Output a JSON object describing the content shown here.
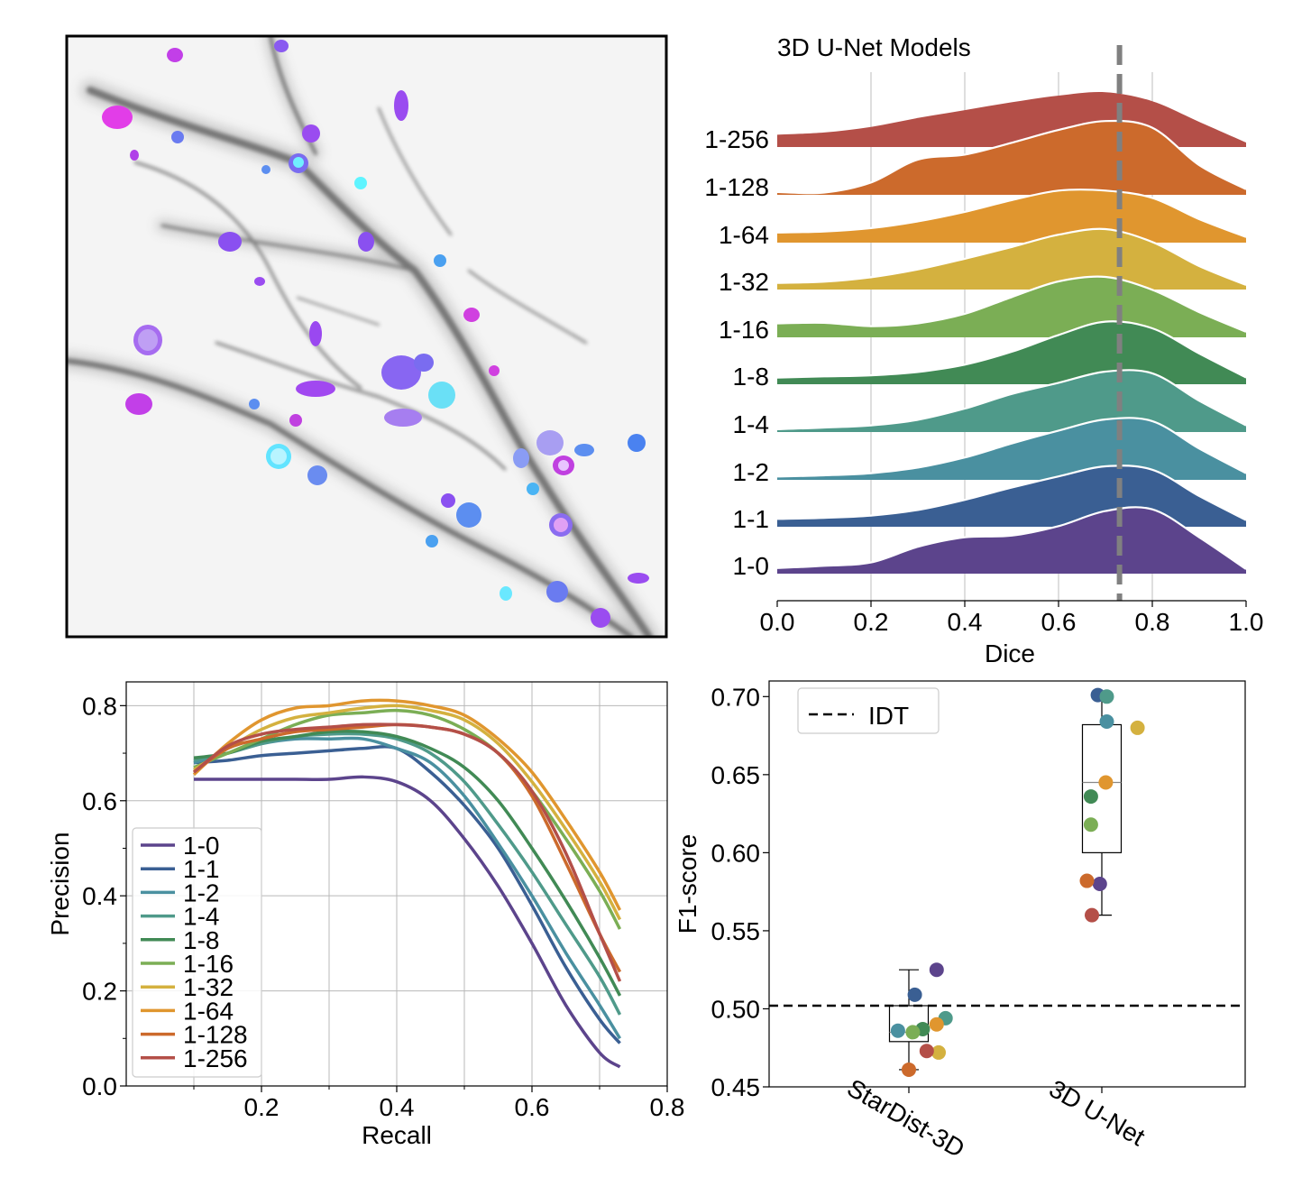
{
  "colors": {
    "1-0": "#5c448c",
    "1-1": "#3a5f93",
    "1-2": "#4a90a0",
    "1-4": "#4f9a8a",
    "1-8": "#418a55",
    "1-16": "#7bae55",
    "1-32": "#d4b13f",
    "1-64": "#e0962f",
    "1-128": "#cc6a2c",
    "1-256": "#b44f48",
    "median": "#808080",
    "idt": "#000000"
  },
  "chart_data": [
    {
      "panel": "micrograph",
      "type": "image",
      "description_visible": "fluorescence micrograph with colored segmented cells"
    },
    {
      "panel": "ridgeline",
      "type": "area",
      "title": "3D U-Net Models",
      "xlabel": "Dice",
      "xlim": [
        0.0,
        1.0
      ],
      "xticks": [
        "0.0",
        "0.2",
        "0.4",
        "0.6",
        "0.8",
        "1.0"
      ],
      "median_dice": 0.73,
      "grid": "vertical",
      "series": [
        {
          "name": "1-256",
          "x": [
            0,
            0.1,
            0.2,
            0.3,
            0.4,
            0.5,
            0.6,
            0.7,
            0.8,
            0.9,
            1.0
          ],
          "density": [
            0.22,
            0.26,
            0.36,
            0.52,
            0.66,
            0.8,
            0.92,
            0.98,
            0.82,
            0.45,
            0.08
          ]
        },
        {
          "name": "1-128",
          "x": [
            0,
            0.1,
            0.2,
            0.3,
            0.4,
            0.5,
            0.6,
            0.7,
            0.8,
            0.9,
            1.0
          ],
          "density": [
            0.05,
            0.04,
            0.22,
            0.63,
            0.72,
            0.93,
            1.16,
            1.32,
            1.2,
            0.53,
            0.1
          ]
        },
        {
          "name": "1-64",
          "x": [
            0,
            0.1,
            0.2,
            0.3,
            0.4,
            0.5,
            0.6,
            0.7,
            0.8,
            0.9,
            1.0
          ],
          "density": [
            0.18,
            0.2,
            0.26,
            0.38,
            0.55,
            0.76,
            0.93,
            0.93,
            0.8,
            0.42,
            0.1
          ]
        },
        {
          "name": "1-32",
          "x": [
            0,
            0.1,
            0.2,
            0.3,
            0.4,
            0.5,
            0.6,
            0.7,
            0.8,
            0.9,
            1.0
          ],
          "density": [
            0.12,
            0.14,
            0.22,
            0.36,
            0.55,
            0.76,
            0.98,
            1.08,
            0.85,
            0.42,
            0.08
          ]
        },
        {
          "name": "1-16",
          "x": [
            0,
            0.1,
            0.2,
            0.3,
            0.4,
            0.5,
            0.6,
            0.7,
            0.8,
            0.9,
            1.0
          ],
          "density": [
            0.25,
            0.26,
            0.2,
            0.25,
            0.42,
            0.72,
            1.0,
            1.08,
            0.85,
            0.45,
            0.1
          ]
        },
        {
          "name": "1-8",
          "x": [
            0,
            0.1,
            0.2,
            0.3,
            0.4,
            0.5,
            0.6,
            0.7,
            0.8,
            0.9,
            1.0
          ],
          "density": [
            0.12,
            0.14,
            0.16,
            0.22,
            0.35,
            0.58,
            0.88,
            1.12,
            1.0,
            0.55,
            0.12
          ]
        },
        {
          "name": "1-4",
          "x": [
            0,
            0.1,
            0.2,
            0.3,
            0.4,
            0.5,
            0.6,
            0.7,
            0.8,
            0.9,
            1.0
          ],
          "density": [
            0.05,
            0.08,
            0.12,
            0.22,
            0.42,
            0.68,
            0.88,
            1.08,
            1.05,
            0.56,
            0.12
          ]
        },
        {
          "name": "1-2",
          "x": [
            0,
            0.1,
            0.2,
            0.3,
            0.4,
            0.5,
            0.6,
            0.7,
            0.8,
            0.9,
            1.0
          ],
          "density": [
            0.06,
            0.08,
            0.12,
            0.22,
            0.4,
            0.65,
            0.88,
            1.08,
            1.05,
            0.56,
            0.12
          ]
        },
        {
          "name": "1-1",
          "x": [
            0,
            0.1,
            0.2,
            0.3,
            0.4,
            0.5,
            0.6,
            0.7,
            0.8,
            0.9,
            1.0
          ],
          "density": [
            0.14,
            0.16,
            0.2,
            0.3,
            0.48,
            0.7,
            0.9,
            1.08,
            1.02,
            0.55,
            0.12
          ]
        },
        {
          "name": "1-0",
          "x": [
            0,
            0.1,
            0.2,
            0.3,
            0.4,
            0.5,
            0.6,
            0.7,
            0.8,
            0.9,
            1.0
          ],
          "density": [
            0.1,
            0.14,
            0.2,
            0.48,
            0.65,
            0.68,
            0.85,
            1.12,
            1.15,
            0.65,
            0.08
          ]
        }
      ]
    },
    {
      "panel": "precision_recall",
      "type": "line",
      "xlabel": "Recall",
      "ylabel": "Precision",
      "xlim": [
        0.0,
        0.8
      ],
      "ylim": [
        0.0,
        0.85
      ],
      "xticks": [
        "0.2",
        "0.4",
        "0.6",
        "0.8"
      ],
      "yticks": [
        "0.0",
        "0.2",
        "0.4",
        "0.6",
        "0.8"
      ],
      "grid": true,
      "legend": "lower-left",
      "x": [
        0.1,
        0.15,
        0.2,
        0.25,
        0.3,
        0.35,
        0.4,
        0.45,
        0.5,
        0.55,
        0.6,
        0.65,
        0.7,
        0.73
      ],
      "series": [
        {
          "name": "1-0",
          "values": [
            0.645,
            0.645,
            0.645,
            0.645,
            0.645,
            0.65,
            0.64,
            0.6,
            0.52,
            0.42,
            0.3,
            0.17,
            0.07,
            0.04
          ]
        },
        {
          "name": "1-1",
          "values": [
            0.68,
            0.685,
            0.695,
            0.7,
            0.705,
            0.71,
            0.71,
            0.66,
            0.59,
            0.5,
            0.38,
            0.25,
            0.14,
            0.09
          ]
        },
        {
          "name": "1-2",
          "values": [
            0.68,
            0.7,
            0.72,
            0.73,
            0.73,
            0.73,
            0.71,
            0.68,
            0.61,
            0.51,
            0.4,
            0.28,
            0.17,
            0.1
          ]
        },
        {
          "name": "1-4",
          "values": [
            0.685,
            0.7,
            0.72,
            0.735,
            0.74,
            0.74,
            0.73,
            0.7,
            0.64,
            0.55,
            0.45,
            0.34,
            0.23,
            0.15
          ]
        },
        {
          "name": "1-8",
          "values": [
            0.69,
            0.7,
            0.725,
            0.735,
            0.745,
            0.745,
            0.735,
            0.71,
            0.67,
            0.6,
            0.5,
            0.39,
            0.27,
            0.19
          ]
        },
        {
          "name": "1-16",
          "values": [
            0.67,
            0.7,
            0.73,
            0.76,
            0.78,
            0.785,
            0.79,
            0.78,
            0.75,
            0.7,
            0.62,
            0.52,
            0.41,
            0.33
          ]
        },
        {
          "name": "1-32",
          "values": [
            0.665,
            0.71,
            0.75,
            0.775,
            0.785,
            0.795,
            0.8,
            0.79,
            0.77,
            0.72,
            0.64,
            0.54,
            0.43,
            0.35
          ]
        },
        {
          "name": "1-64",
          "values": [
            0.655,
            0.72,
            0.77,
            0.795,
            0.8,
            0.81,
            0.81,
            0.8,
            0.78,
            0.73,
            0.66,
            0.56,
            0.45,
            0.37
          ]
        },
        {
          "name": "1-128",
          "values": [
            0.66,
            0.71,
            0.73,
            0.745,
            0.75,
            0.755,
            0.76,
            0.755,
            0.74,
            0.7,
            0.61,
            0.47,
            0.32,
            0.24
          ]
        },
        {
          "name": "1-256",
          "values": [
            0.66,
            0.715,
            0.74,
            0.75,
            0.755,
            0.76,
            0.76,
            0.755,
            0.74,
            0.7,
            0.62,
            0.49,
            0.32,
            0.22
          ]
        }
      ]
    },
    {
      "panel": "f1_box",
      "type": "scatter",
      "ylabel": "F1-score",
      "ylim": [
        0.45,
        0.71
      ],
      "yticks": [
        "0.45",
        "0.50",
        "0.55",
        "0.60",
        "0.65",
        "0.70"
      ],
      "categories": [
        "StarDist-3D",
        "3D U-Net"
      ],
      "idt_line": 0.502,
      "legend": "upper-left",
      "legend_label": "IDT",
      "boxes": [
        {
          "q1": 0.479,
          "median": 0.485,
          "q3": 0.502,
          "whisker_low": 0.461,
          "whisker_high": 0.525
        },
        {
          "q1": 0.6,
          "median": 0.645,
          "q3": 0.682,
          "whisker_low": 0.56,
          "whisker_high": 0.701
        }
      ],
      "points": [
        {
          "group": "StarDist-3D",
          "series": "1-0",
          "offset": 0.28,
          "value": 0.525
        },
        {
          "group": "StarDist-3D",
          "series": "1-1",
          "offset": 0.06,
          "value": 0.509
        },
        {
          "group": "StarDist-3D",
          "series": "1-2",
          "offset": -0.11,
          "value": 0.486
        },
        {
          "group": "StarDist-3D",
          "series": "1-4",
          "offset": 0.37,
          "value": 0.494
        },
        {
          "group": "StarDist-3D",
          "series": "1-8",
          "offset": 0.14,
          "value": 0.487
        },
        {
          "group": "StarDist-3D",
          "series": "1-16",
          "offset": 0.04,
          "value": 0.485
        },
        {
          "group": "StarDist-3D",
          "series": "1-32",
          "offset": 0.3,
          "value": 0.472
        },
        {
          "group": "StarDist-3D",
          "series": "1-64",
          "offset": 0.28,
          "value": 0.49
        },
        {
          "group": "StarDist-3D",
          "series": "1-128",
          "offset": 0.0,
          "value": 0.461
        },
        {
          "group": "StarDist-3D",
          "series": "1-256",
          "offset": 0.18,
          "value": 0.473
        },
        {
          "group": "3D U-Net",
          "series": "1-0",
          "offset": -0.02,
          "value": 0.58
        },
        {
          "group": "3D U-Net",
          "series": "1-1",
          "offset": -0.04,
          "value": 0.701
        },
        {
          "group": "3D U-Net",
          "series": "1-2",
          "offset": 0.05,
          "value": 0.684
        },
        {
          "group": "3D U-Net",
          "series": "1-4",
          "offset": 0.05,
          "value": 0.7
        },
        {
          "group": "3D U-Net",
          "series": "1-8",
          "offset": -0.11,
          "value": 0.636
        },
        {
          "group": "3D U-Net",
          "series": "1-16",
          "offset": -0.11,
          "value": 0.618
        },
        {
          "group": "3D U-Net",
          "series": "1-32",
          "offset": 0.36,
          "value": 0.68
        },
        {
          "group": "3D U-Net",
          "series": "1-64",
          "offset": 0.04,
          "value": 0.645
        },
        {
          "group": "3D U-Net",
          "series": "1-128",
          "offset": -0.15,
          "value": 0.582
        },
        {
          "group": "3D U-Net",
          "series": "1-256",
          "offset": -0.1,
          "value": 0.56
        }
      ]
    }
  ]
}
